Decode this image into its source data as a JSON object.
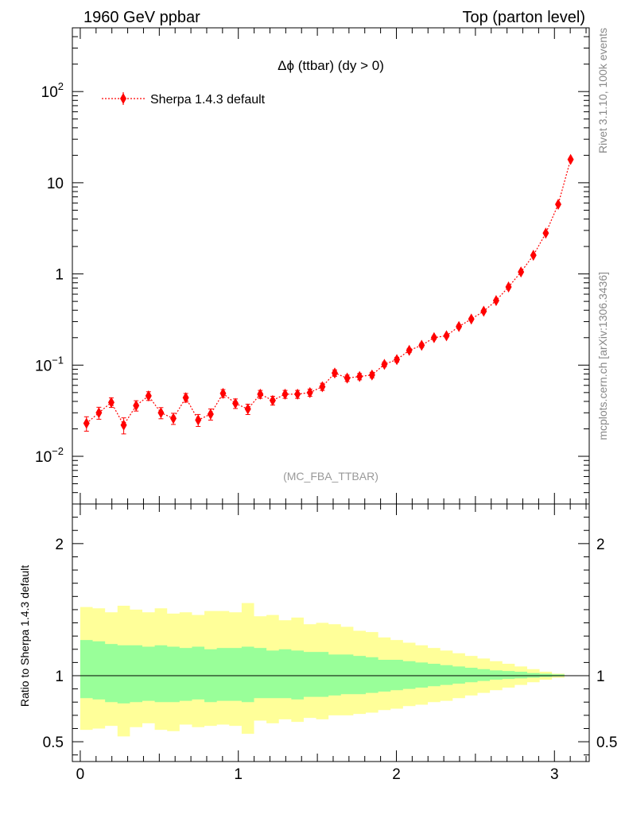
{
  "header": {
    "left": "1960 GeV ppbar",
    "right": "Top (parton level)"
  },
  "side_labels": {
    "rivet": "Rivet 3.1.10,  100k events",
    "mcplots": "mcplots.cern.ch [arXiv:1306.3436]"
  },
  "analysis_id": "(MC_FBA_TTBAR)",
  "colors": {
    "series": "#ff0000",
    "band_green": "#99ff99",
    "band_yellow": "#ffff99",
    "analysis_text": "#999999",
    "side_text": "#888888"
  },
  "chart_data": [
    {
      "type": "scatter",
      "panel": "main",
      "title": "Δϕ (ttbar) (dy > 0)",
      "y_scale": "log",
      "xlim": [
        -0.05,
        3.22
      ],
      "ylim": [
        0.003,
        500
      ],
      "yticks": [
        {
          "value": 0.01,
          "label": "10",
          "exp": "−2"
        },
        {
          "value": 0.1,
          "label": "10",
          "exp": "−1"
        },
        {
          "value": 1,
          "label": "1",
          "exp": ""
        },
        {
          "value": 10,
          "label": "10",
          "exp": ""
        },
        {
          "value": 100,
          "label": "10",
          "exp": "2"
        }
      ],
      "legend": {
        "placement": "top-left",
        "entries": [
          "Sherpa 1.4.3 default"
        ]
      },
      "series": [
        {
          "name": "Sherpa 1.4.3 default",
          "marker": "diamond",
          "line": "dotted",
          "x": [
            0.0393,
            0.1178,
            0.1963,
            0.2749,
            0.3534,
            0.432,
            0.5105,
            0.589,
            0.6676,
            0.7461,
            0.8247,
            0.9032,
            0.9817,
            1.0603,
            1.1388,
            1.2174,
            1.2959,
            1.3744,
            1.453,
            1.5315,
            1.6101,
            1.6886,
            1.7671,
            1.8457,
            1.9242,
            2.0028,
            2.0813,
            2.1598,
            2.2384,
            2.3169,
            2.3955,
            2.474,
            2.5525,
            2.6311,
            2.7096,
            2.7882,
            2.8667,
            2.9452,
            3.0238,
            3.1023
          ],
          "y": [
            0.023,
            0.03,
            0.039,
            0.022,
            0.036,
            0.046,
            0.03,
            0.026,
            0.044,
            0.025,
            0.029,
            0.049,
            0.038,
            0.033,
            0.048,
            0.041,
            0.048,
            0.048,
            0.05,
            0.058,
            0.082,
            0.072,
            0.075,
            0.078,
            0.102,
            0.115,
            0.145,
            0.165,
            0.2,
            0.21,
            0.265,
            0.32,
            0.39,
            0.51,
            0.72,
            1.05,
            1.6,
            2.8,
            5.8,
            18.0
          ],
          "y_err_frac": [
            0.18,
            0.15,
            0.12,
            0.2,
            0.13,
            0.11,
            0.14,
            0.14,
            0.11,
            0.15,
            0.14,
            0.1,
            0.12,
            0.13,
            0.1,
            0.11,
            0.1,
            0.1,
            0.09,
            0.09,
            0.08,
            0.08,
            0.08,
            0.07,
            0.06,
            0.06,
            0.05,
            0.05,
            0.04,
            0.04,
            0.04,
            0.03,
            0.03,
            0.03,
            0.02,
            0.02,
            0.02,
            0.01,
            0.01,
            0.01
          ]
        }
      ]
    },
    {
      "type": "area",
      "panel": "ratio",
      "ylabel": "Ratio to Sherpa 1.4.3 default",
      "xlim": [
        -0.05,
        3.22
      ],
      "ylim": [
        0.35,
        2.3
      ],
      "yticks": [
        0.5,
        1,
        2
      ],
      "xticks": [
        0,
        1,
        2,
        3
      ],
      "bin_edges": [
        0.0,
        0.0785,
        0.1571,
        0.2356,
        0.3142,
        0.3927,
        0.4712,
        0.5498,
        0.6283,
        0.7069,
        0.7854,
        0.8639,
        0.9425,
        1.021,
        1.0996,
        1.1781,
        1.2566,
        1.3352,
        1.4137,
        1.4923,
        1.5708,
        1.6493,
        1.7279,
        1.8064,
        1.885,
        1.9635,
        2.042,
        2.1206,
        2.1991,
        2.2777,
        2.3562,
        2.4347,
        2.5133,
        2.5918,
        2.6704,
        2.7489,
        2.8274,
        2.906,
        2.9845,
        3.0631,
        3.1416
      ],
      "reference_line": 1,
      "bands": [
        {
          "color_key": "band_yellow",
          "low": [
            0.59,
            0.6,
            0.62,
            0.54,
            0.61,
            0.64,
            0.59,
            0.58,
            0.63,
            0.61,
            0.62,
            0.63,
            0.62,
            0.56,
            0.66,
            0.64,
            0.67,
            0.65,
            0.68,
            0.67,
            0.7,
            0.7,
            0.71,
            0.72,
            0.74,
            0.75,
            0.77,
            0.78,
            0.8,
            0.81,
            0.83,
            0.85,
            0.87,
            0.89,
            0.91,
            0.93,
            0.95,
            0.97,
            0.985,
            1.0
          ],
          "high": [
            1.52,
            1.51,
            1.48,
            1.53,
            1.5,
            1.48,
            1.51,
            1.47,
            1.48,
            1.46,
            1.49,
            1.49,
            1.48,
            1.55,
            1.45,
            1.46,
            1.42,
            1.44,
            1.39,
            1.4,
            1.39,
            1.37,
            1.34,
            1.33,
            1.29,
            1.27,
            1.25,
            1.23,
            1.21,
            1.19,
            1.17,
            1.15,
            1.13,
            1.11,
            1.09,
            1.07,
            1.05,
            1.03,
            1.015,
            1.0
          ]
        },
        {
          "color_key": "band_green",
          "low": [
            0.83,
            0.82,
            0.8,
            0.79,
            0.8,
            0.81,
            0.8,
            0.8,
            0.81,
            0.82,
            0.8,
            0.81,
            0.81,
            0.8,
            0.83,
            0.83,
            0.83,
            0.82,
            0.84,
            0.84,
            0.85,
            0.86,
            0.86,
            0.87,
            0.88,
            0.89,
            0.9,
            0.91,
            0.92,
            0.93,
            0.94,
            0.95,
            0.96,
            0.97,
            0.975,
            0.98,
            0.985,
            0.99,
            0.995,
            1.0
          ],
          "high": [
            1.27,
            1.26,
            1.24,
            1.23,
            1.23,
            1.22,
            1.23,
            1.22,
            1.21,
            1.22,
            1.2,
            1.21,
            1.21,
            1.22,
            1.21,
            1.19,
            1.2,
            1.19,
            1.18,
            1.18,
            1.16,
            1.16,
            1.15,
            1.14,
            1.12,
            1.12,
            1.11,
            1.1,
            1.09,
            1.08,
            1.07,
            1.06,
            1.05,
            1.04,
            1.035,
            1.03,
            1.02,
            1.015,
            1.01,
            1.0
          ]
        }
      ]
    }
  ]
}
